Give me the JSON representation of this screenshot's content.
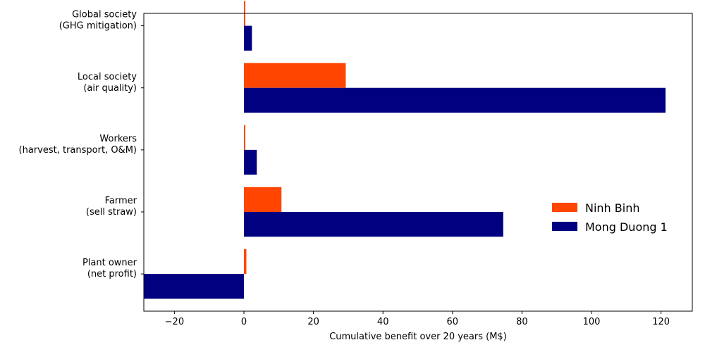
{
  "chart_data": {
    "type": "bar",
    "orientation": "horizontal",
    "categories": [
      "Plant owner\n(net profit)",
      "Farmer\n(sell straw)",
      "Workers\n(harvest, transport, O&M)",
      "Local society\n(air quality)",
      "Global society\n(GHG mitigation)"
    ],
    "series": [
      {
        "name": "Ninh Binh",
        "color": "#ff4500",
        "values": [
          0.7,
          10.8,
          0.4,
          29.3,
          0.4
        ]
      },
      {
        "name": "Mong Duong 1",
        "color": "#000080",
        "values": [
          -28.8,
          74.6,
          3.7,
          121.3,
          2.3
        ]
      }
    ],
    "xlabel": "Cumulative benefit over 20 years (M$)",
    "ylabel": "",
    "xlim": [
      -28.8,
      129.0
    ],
    "xticks": [
      -20,
      0,
      20,
      40,
      60,
      80,
      100,
      120
    ],
    "xtick_labels": [
      "−20",
      "0",
      "20",
      "40",
      "60",
      "80",
      "100",
      "120"
    ],
    "grid": false,
    "legend_position": "right"
  }
}
